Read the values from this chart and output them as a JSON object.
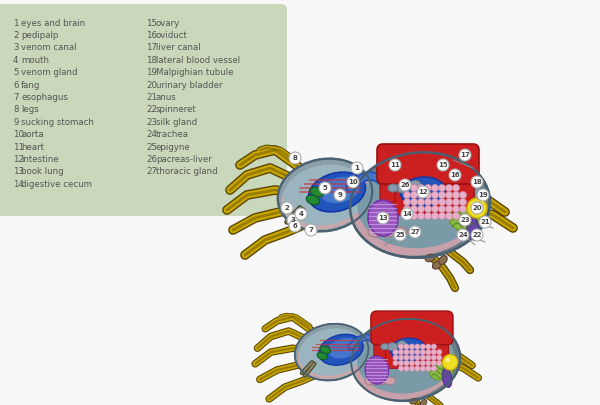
{
  "background_color": "#f8f8f8",
  "legend_box_color": "#c5d5b5",
  "text_color": "#555555",
  "font_size": 6.2,
  "legend_left": [
    [
      "1",
      "eyes and brain"
    ],
    [
      "2",
      "pedipalp"
    ],
    [
      "3",
      "venom canal"
    ],
    [
      "4",
      "mouth"
    ],
    [
      "5",
      "venom gland"
    ],
    [
      "6",
      "fang"
    ],
    [
      "7",
      "esophagus"
    ],
    [
      "8",
      "legs"
    ],
    [
      "9",
      "sucking stomach"
    ],
    [
      "10",
      "aorta"
    ],
    [
      "11",
      "heart"
    ],
    [
      "12",
      "intestine"
    ],
    [
      "13",
      "book lung"
    ],
    [
      "14",
      "digestive cecum"
    ]
  ],
  "legend_right": [
    [
      "15",
      "ovary"
    ],
    [
      "16",
      "oviduct"
    ],
    [
      "17",
      "liver canal"
    ],
    [
      "18",
      "lateral blood vessel"
    ],
    [
      "19",
      "Malpighian tubule"
    ],
    [
      "20",
      "urinary bladder"
    ],
    [
      "21",
      "anus"
    ],
    [
      "22",
      "spinneret"
    ],
    [
      "23",
      "silk gland"
    ],
    [
      "24",
      "trachea"
    ],
    [
      "25",
      "epigyne"
    ],
    [
      "26",
      "pacreas-liver"
    ],
    [
      "27",
      "thoracic gland"
    ]
  ]
}
